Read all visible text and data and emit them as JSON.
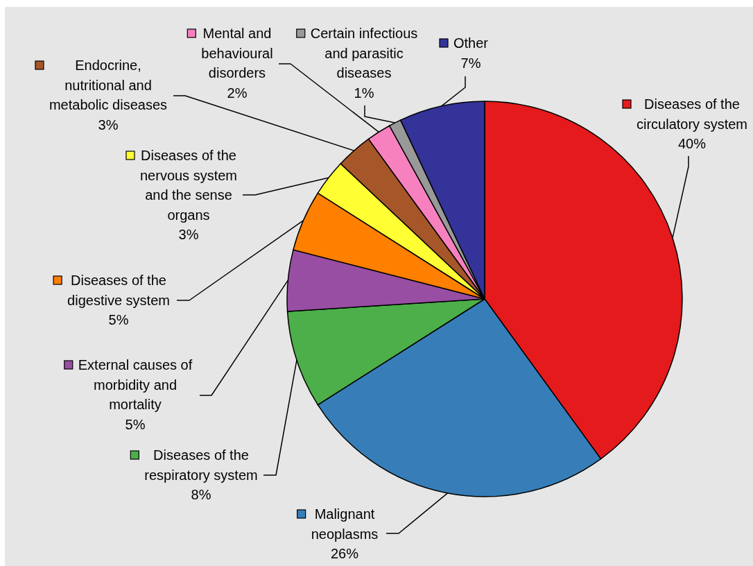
{
  "chart_data": {
    "type": "pie",
    "categories": [
      "Diseases of the circulatory system",
      "Malignant neoplasms",
      "Diseases of the respiratory system",
      "External causes of morbidity and mortality",
      "Diseases of the digestive system",
      "Diseases of the nervous system and the sense organs",
      "Endocrine, nutritional and metabolic diseases",
      "Mental and behavioural disorders",
      "Certain infectious and parasitic diseases",
      "Other"
    ],
    "values": [
      40,
      26,
      8,
      5,
      5,
      3,
      3,
      2,
      1,
      7
    ],
    "colors": [
      "#e41a1c",
      "#377eb8",
      "#4daf4a",
      "#984ea3",
      "#ff7f00",
      "#ffff33",
      "#a65628",
      "#f781bf",
      "#999999",
      "#333399"
    ],
    "value_labels": [
      "40%",
      "26%",
      "8%",
      "5%",
      "5%",
      "3%",
      "3%",
      "2%",
      "1%",
      "7%"
    ],
    "legend": "left"
  }
}
